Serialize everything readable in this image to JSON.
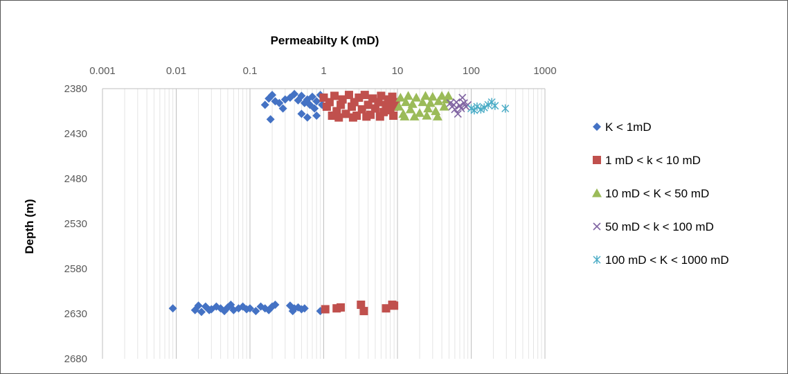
{
  "chart_data": {
    "type": "scatter",
    "title": "",
    "xlabel": "Permeabilty K (mD)",
    "ylabel": "Depth (m)",
    "xscale": "log",
    "xlim": [
      0.001,
      1000
    ],
    "ylim": [
      2680,
      2380
    ],
    "y_inverted": true,
    "x_axis_position": "top",
    "xticks": [
      "0.001",
      "0.01",
      "0.1",
      "1",
      "10",
      "100",
      "1000"
    ],
    "yticks": [
      "2380",
      "2430",
      "2480",
      "2530",
      "2580",
      "2630",
      "2680"
    ],
    "grid": "vertical minor and major gridlines",
    "legend_position": "right",
    "series": [
      {
        "name": "K < 1mD",
        "color": "#4472C4",
        "marker": "diamond",
        "points": [
          [
            0.16,
            2398
          ],
          [
            0.18,
            2391
          ],
          [
            0.2,
            2387
          ],
          [
            0.22,
            2394
          ],
          [
            0.25,
            2396
          ],
          [
            0.28,
            2402
          ],
          [
            0.3,
            2392
          ],
          [
            0.35,
            2390
          ],
          [
            0.4,
            2386
          ],
          [
            0.45,
            2393
          ],
          [
            0.5,
            2388
          ],
          [
            0.55,
            2396
          ],
          [
            0.6,
            2392
          ],
          [
            0.7,
            2389
          ],
          [
            0.8,
            2394
          ],
          [
            0.9,
            2387
          ],
          [
            0.95,
            2398
          ],
          [
            0.5,
            2408
          ],
          [
            0.6,
            2412
          ],
          [
            0.8,
            2410
          ],
          [
            0.19,
            2414
          ],
          [
            0.75,
            2402
          ],
          [
            0.65,
            2398
          ],
          [
            0.009,
            2624
          ],
          [
            0.018,
            2626
          ],
          [
            0.02,
            2621
          ],
          [
            0.022,
            2628
          ],
          [
            0.025,
            2622
          ],
          [
            0.028,
            2626
          ],
          [
            0.03,
            2625
          ],
          [
            0.035,
            2622
          ],
          [
            0.04,
            2624
          ],
          [
            0.045,
            2627
          ],
          [
            0.05,
            2623
          ],
          [
            0.055,
            2620
          ],
          [
            0.06,
            2626
          ],
          [
            0.07,
            2624
          ],
          [
            0.08,
            2622
          ],
          [
            0.09,
            2625
          ],
          [
            0.1,
            2624
          ],
          [
            0.12,
            2627
          ],
          [
            0.14,
            2622
          ],
          [
            0.16,
            2624
          ],
          [
            0.18,
            2626
          ],
          [
            0.2,
            2622
          ],
          [
            0.22,
            2620
          ],
          [
            0.35,
            2621
          ],
          [
            0.38,
            2627
          ],
          [
            0.4,
            2624
          ],
          [
            0.45,
            2623
          ],
          [
            0.5,
            2625
          ],
          [
            0.55,
            2624
          ],
          [
            0.9,
            2627
          ]
        ]
      },
      {
        "name": "1 mD < k < 10 mD",
        "color": "#C0504D",
        "marker": "square",
        "points": [
          [
            1.0,
            2390
          ],
          [
            1.1,
            2400
          ],
          [
            1.2,
            2395
          ],
          [
            1.3,
            2410
          ],
          [
            1.4,
            2388
          ],
          [
            1.5,
            2405
          ],
          [
            1.7,
            2398
          ],
          [
            1.8,
            2392
          ],
          [
            2.0,
            2408
          ],
          [
            2.2,
            2387
          ],
          [
            2.4,
            2400
          ],
          [
            2.6,
            2395
          ],
          [
            2.8,
            2410
          ],
          [
            3.0,
            2390
          ],
          [
            3.3,
            2403
          ],
          [
            3.6,
            2387
          ],
          [
            4.0,
            2398
          ],
          [
            4.3,
            2409
          ],
          [
            4.6,
            2391
          ],
          [
            5.0,
            2402
          ],
          [
            5.5,
            2395
          ],
          [
            6.0,
            2388
          ],
          [
            6.5,
            2406
          ],
          [
            7.0,
            2398
          ],
          [
            7.5,
            2392
          ],
          [
            8.0,
            2404
          ],
          [
            8.5,
            2389
          ],
          [
            9.0,
            2400
          ],
          [
            9.5,
            2395
          ],
          [
            1.6,
            2412
          ],
          [
            2.5,
            2412
          ],
          [
            3.8,
            2411
          ],
          [
            5.8,
            2411
          ],
          [
            8.8,
            2410
          ],
          [
            1.05,
            2625
          ],
          [
            1.5,
            2624
          ],
          [
            1.7,
            2623
          ],
          [
            3.2,
            2620
          ],
          [
            3.5,
            2627
          ],
          [
            7.0,
            2624
          ],
          [
            8.5,
            2620
          ],
          [
            9.0,
            2621
          ]
        ]
      },
      {
        "name": "10 mD < K < 50 mD",
        "color": "#9BBB59",
        "marker": "triangle",
        "points": [
          [
            10.5,
            2400
          ],
          [
            11,
            2390
          ],
          [
            12,
            2408
          ],
          [
            13,
            2395
          ],
          [
            14,
            2388
          ],
          [
            15,
            2403
          ],
          [
            16,
            2397
          ],
          [
            18,
            2390
          ],
          [
            20,
            2407
          ],
          [
            22,
            2395
          ],
          [
            24,
            2388
          ],
          [
            26,
            2402
          ],
          [
            28,
            2396
          ],
          [
            30,
            2389
          ],
          [
            33,
            2405
          ],
          [
            36,
            2394
          ],
          [
            40,
            2388
          ],
          [
            43,
            2400
          ],
          [
            46,
            2392
          ],
          [
            49,
            2388
          ],
          [
            12.5,
            2411
          ],
          [
            17,
            2411
          ],
          [
            25,
            2410
          ],
          [
            35,
            2411
          ]
        ]
      },
      {
        "name": "50 mD < k < 100 mD",
        "color": "#8064A2",
        "marker": "x",
        "points": [
          [
            52,
            2396
          ],
          [
            55,
            2400
          ],
          [
            58,
            2398
          ],
          [
            60,
            2403
          ],
          [
            63,
            2395
          ],
          [
            66,
            2408
          ],
          [
            70,
            2399
          ],
          [
            73,
            2402
          ],
          [
            76,
            2390
          ],
          [
            80,
            2396
          ],
          [
            85,
            2400
          ],
          [
            90,
            2398
          ]
        ]
      },
      {
        "name": "100 mD < K < 1000 mD",
        "color": "#4BACC6",
        "marker": "star",
        "points": [
          [
            100,
            2402
          ],
          [
            110,
            2404
          ],
          [
            120,
            2400
          ],
          [
            135,
            2403
          ],
          [
            150,
            2401
          ],
          [
            170,
            2398
          ],
          [
            190,
            2395
          ],
          [
            210,
            2399
          ],
          [
            290,
            2402
          ]
        ]
      }
    ]
  }
}
